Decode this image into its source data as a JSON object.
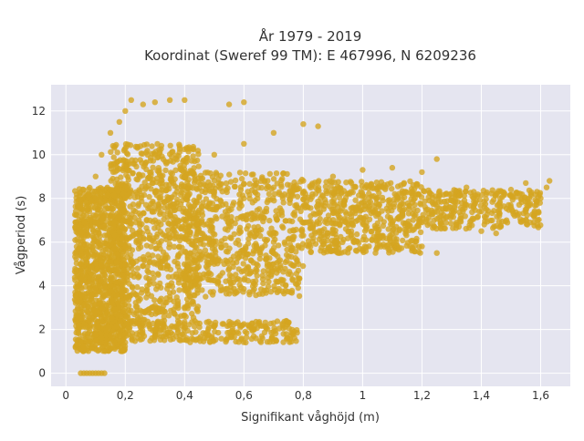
{
  "chart_data": {
    "type": "scatter",
    "title_lines": [
      "År 1979 - 2019",
      "Koordinat (Sweref 99 TM): E 467996, N 6209236"
    ],
    "xlabel": "Signifikant våghöjd (m)",
    "ylabel": "Vågperiod (s)",
    "xlim": [
      -0.05,
      1.7
    ],
    "ylim": [
      -0.6,
      13.2
    ],
    "xticks": [
      0,
      0.2,
      0.4,
      0.6,
      0.8,
      1,
      1.2,
      1.4,
      1.6
    ],
    "xtick_labels": [
      "0",
      "0,2",
      "0,4",
      "0,6",
      "0,8",
      "1",
      "1,2",
      "1,4",
      "1,6"
    ],
    "yticks": [
      0,
      2,
      4,
      6,
      8,
      10,
      12
    ],
    "ytick_labels": [
      "0",
      "2",
      "4",
      "6",
      "8",
      "10",
      "12"
    ],
    "grid": true,
    "colors": {
      "marker": "#D4A520",
      "plot_bg": "#E5E5F0",
      "grid": "#ffffff"
    },
    "points": [
      [
        0.05,
        0
      ],
      [
        0.06,
        0
      ],
      [
        0.07,
        0
      ],
      [
        0.08,
        0
      ],
      [
        0.09,
        0
      ],
      [
        0.1,
        0
      ],
      [
        0.11,
        0
      ],
      [
        0.12,
        0
      ],
      [
        0.13,
        0
      ],
      [
        0.05,
        1.1
      ],
      [
        0.05,
        1.4
      ],
      [
        0.06,
        1.2
      ],
      [
        0.08,
        1.5
      ],
      [
        0.1,
        1.3
      ],
      [
        0.12,
        1.6
      ],
      [
        0.15,
        1.7
      ],
      [
        0.2,
        1.8
      ],
      [
        0.25,
        1.9
      ],
      [
        0.3,
        2.0
      ],
      [
        0.35,
        2.05
      ],
      [
        0.4,
        2.1
      ],
      [
        0.45,
        2.1
      ],
      [
        0.5,
        2.15
      ],
      [
        0.55,
        2.2
      ],
      [
        0.6,
        2.25
      ],
      [
        0.65,
        2.28
      ],
      [
        0.7,
        2.3
      ],
      [
        0.75,
        2.3
      ],
      [
        0.04,
        3
      ],
      [
        0.04,
        4
      ],
      [
        0.05,
        5
      ],
      [
        0.05,
        6
      ],
      [
        0.06,
        6.2
      ],
      [
        0.08,
        7
      ],
      [
        0.1,
        8
      ],
      [
        0.1,
        9
      ],
      [
        0.12,
        10
      ],
      [
        0.15,
        11
      ],
      [
        0.18,
        11.5
      ],
      [
        0.2,
        12
      ],
      [
        0.22,
        12.5
      ],
      [
        0.26,
        12.3
      ],
      [
        0.3,
        12.4
      ],
      [
        0.35,
        12.5
      ],
      [
        0.4,
        12.5
      ],
      [
        0.55,
        12.3
      ],
      [
        0.6,
        12.4
      ],
      [
        0.12,
        3
      ],
      [
        0.15,
        4
      ],
      [
        0.2,
        5
      ],
      [
        0.25,
        6
      ],
      [
        0.3,
        7
      ],
      [
        0.2,
        8
      ],
      [
        0.25,
        9
      ],
      [
        0.3,
        10
      ],
      [
        0.4,
        9
      ],
      [
        0.5,
        10
      ],
      [
        0.6,
        10.5
      ],
      [
        0.7,
        11
      ],
      [
        0.8,
        11.4
      ],
      [
        0.85,
        11.3
      ],
      [
        0.3,
        3
      ],
      [
        0.35,
        3.5
      ],
      [
        0.4,
        4
      ],
      [
        0.45,
        4.5
      ],
      [
        0.5,
        5
      ],
      [
        0.6,
        5.5
      ],
      [
        0.7,
        6
      ],
      [
        0.8,
        6.3
      ],
      [
        0.9,
        6.6
      ],
      [
        1.0,
        6.9
      ],
      [
        0.4,
        7
      ],
      [
        0.5,
        7.5
      ],
      [
        0.6,
        8
      ],
      [
        0.7,
        8.5
      ],
      [
        0.8,
        8.8
      ],
      [
        0.9,
        9
      ],
      [
        1.0,
        9.3
      ],
      [
        1.1,
        9.4
      ],
      [
        1.2,
        9.2
      ],
      [
        1.25,
        9.8
      ],
      [
        1.1,
        6.8
      ],
      [
        1.2,
        6.9
      ],
      [
        1.3,
        7.2
      ],
      [
        1.4,
        7.4
      ],
      [
        1.5,
        7.6
      ],
      [
        1.6,
        8
      ],
      [
        1.63,
        8.8
      ],
      [
        1.62,
        8.5
      ],
      [
        1.55,
        8.7
      ],
      [
        1.5,
        8.4
      ],
      [
        1.45,
        8.2
      ],
      [
        1.35,
        8.5
      ],
      [
        1.3,
        7.9
      ],
      [
        1.4,
        6.5
      ],
      [
        1.45,
        6.4
      ],
      [
        1.25,
        5.5
      ],
      [
        1.2,
        5.8
      ]
    ],
    "bands": [
      {
        "x": [
          0.03,
          0.2
        ],
        "y_min": 1.0,
        "y_max": 8.5,
        "count": 1100
      },
      {
        "x": [
          0.15,
          0.45
        ],
        "y_min": 2.2,
        "y_max": 10.5,
        "count": 900
      },
      {
        "x": [
          0.4,
          0.8
        ],
        "y_min": 3.5,
        "y_max": 9.2,
        "count": 700
      },
      {
        "x": [
          0.8,
          1.2
        ],
        "y_min": 5.5,
        "y_max": 8.8,
        "count": 550
      },
      {
        "x": [
          1.2,
          1.6
        ],
        "y_min": 6.6,
        "y_max": 8.4,
        "count": 300
      },
      {
        "x": [
          0.1,
          0.78
        ],
        "y_min": 1.4,
        "y_max": 2.4,
        "count": 300
      }
    ]
  }
}
